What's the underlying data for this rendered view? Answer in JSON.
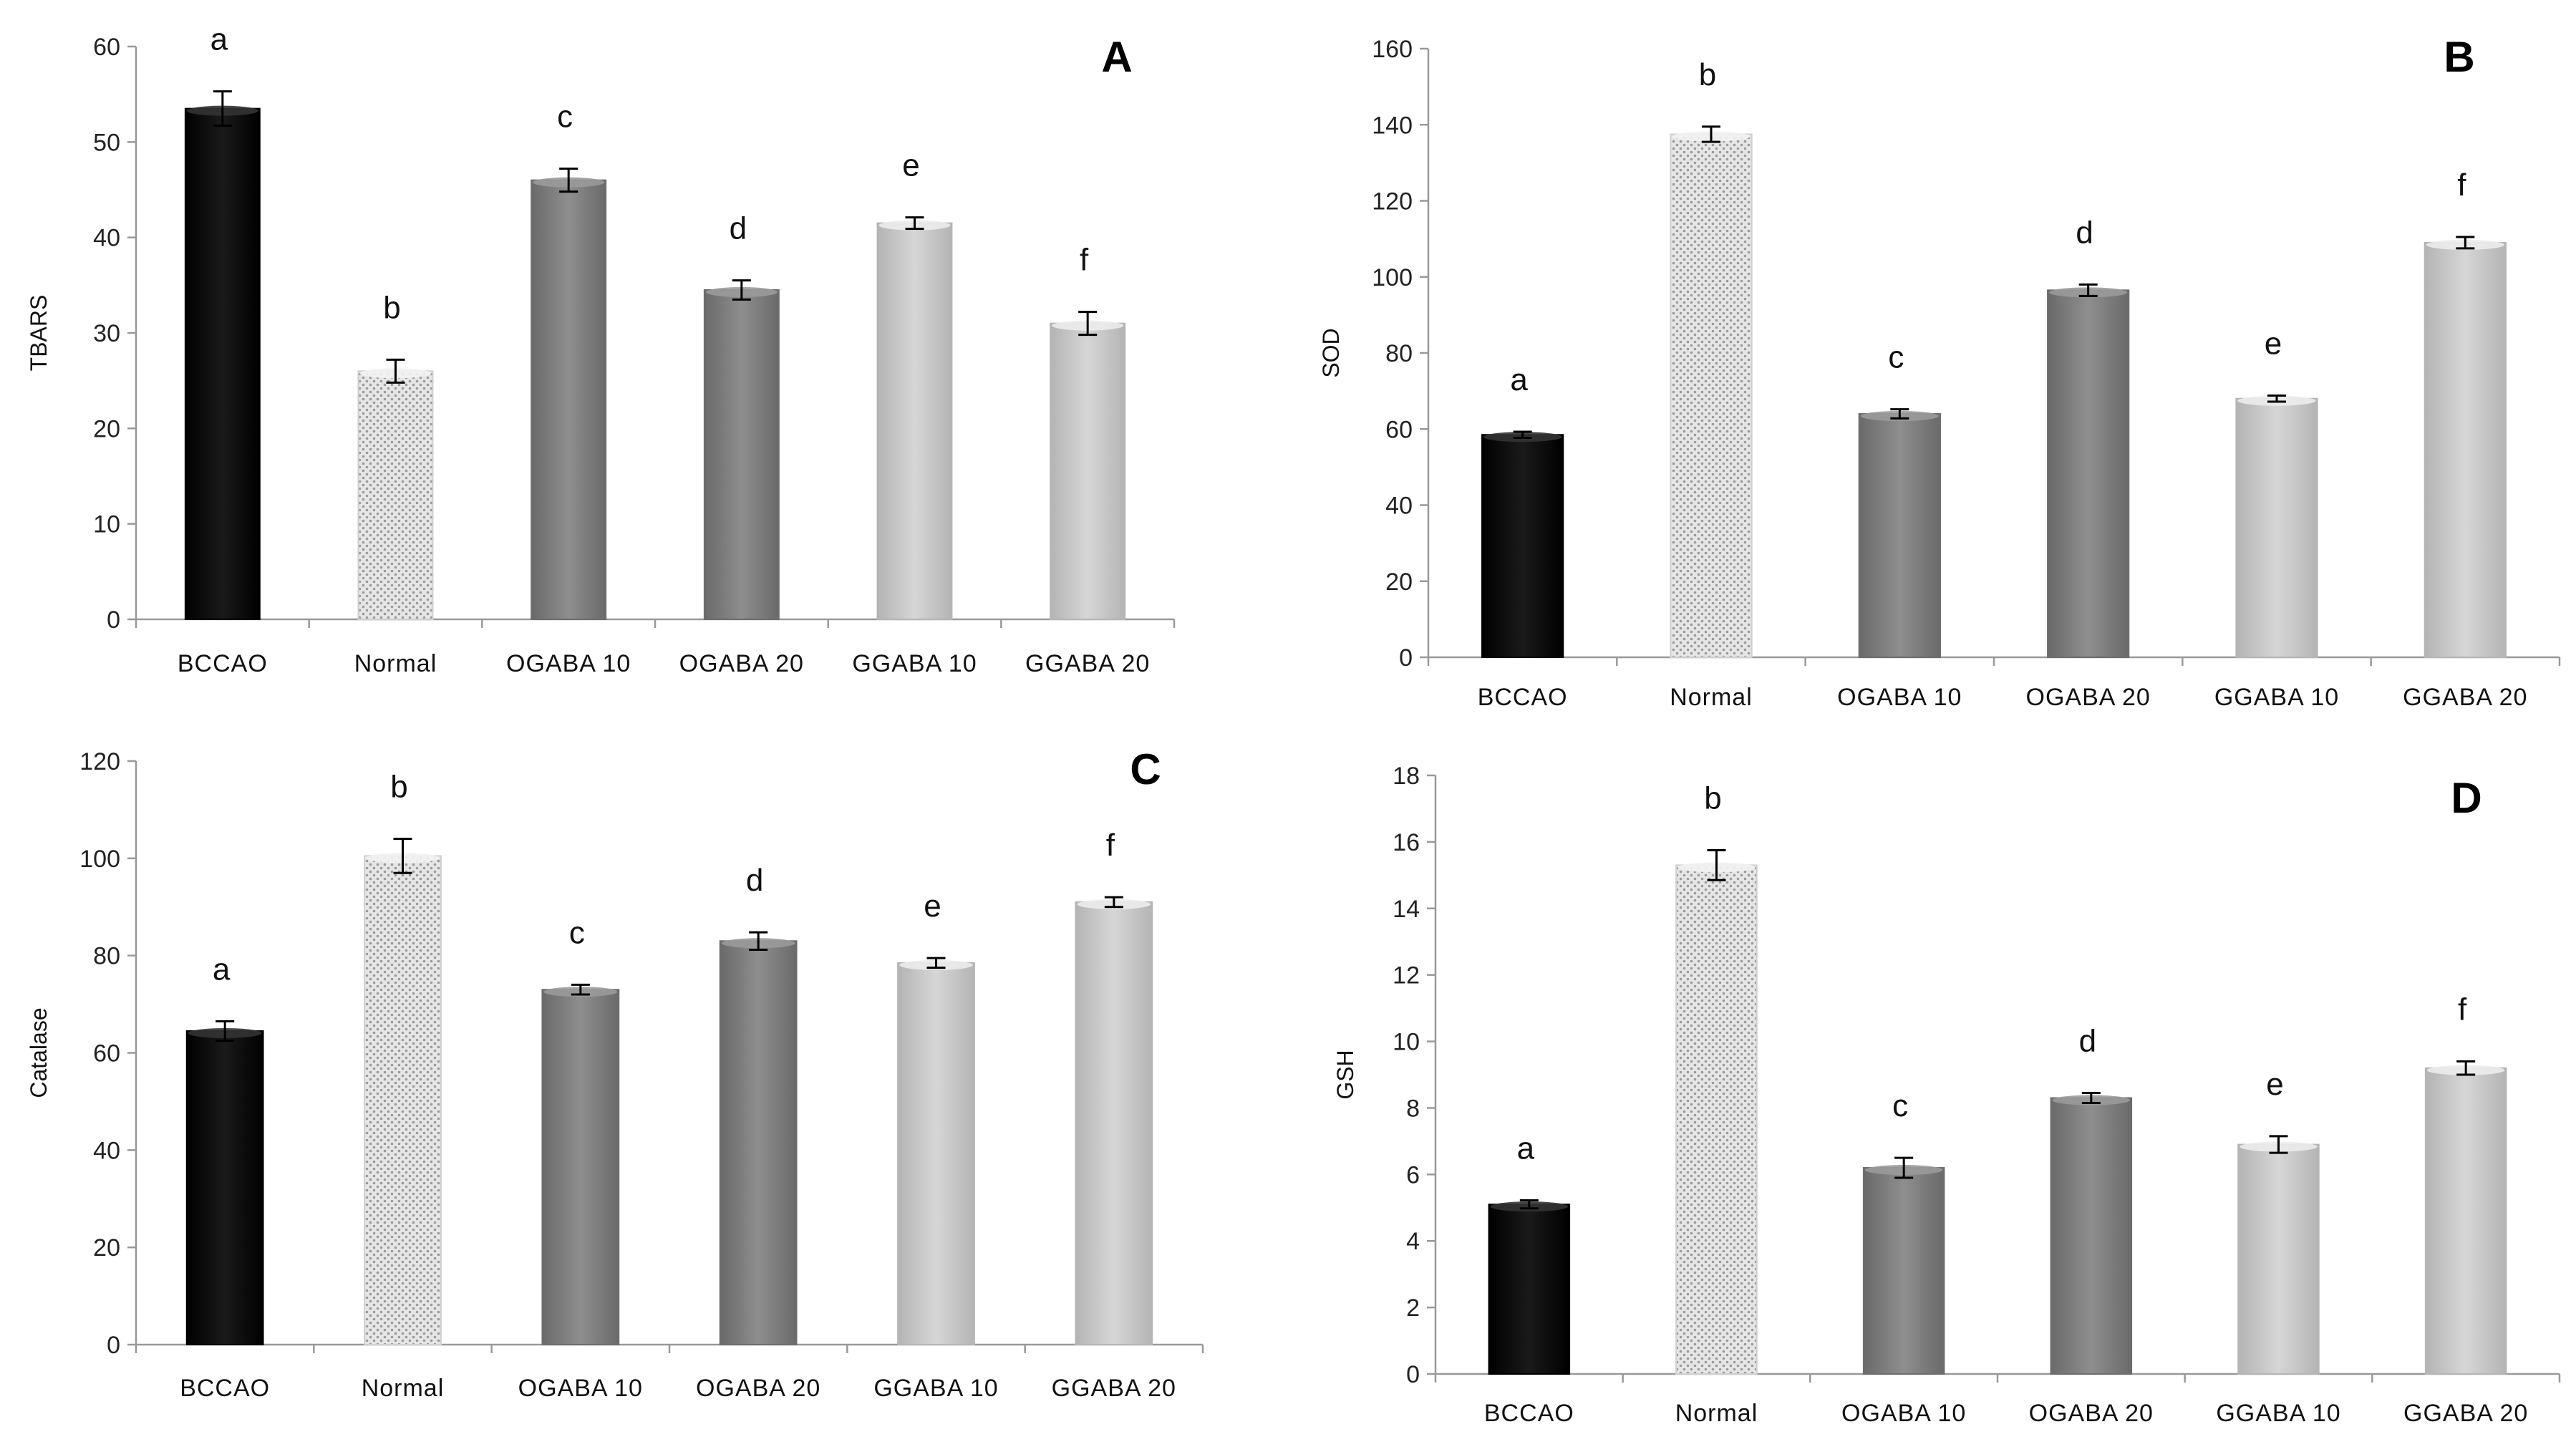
{
  "chart_data": [
    {
      "type": "bar",
      "panel_label": "A",
      "ylabel": "TBARS",
      "xlabel": "",
      "ylim": [
        0,
        60
      ],
      "yticks": [
        0,
        10,
        20,
        30,
        40,
        50,
        60
      ],
      "ytick_labels": [
        "0",
        "10",
        "20",
        "30",
        "40",
        "50",
        "60"
      ],
      "categories": [
        "BCCAO",
        "Normal",
        "OGABA 10",
        "OGABA 20",
        "GGABA 10",
        "GGABA 20"
      ],
      "values": [
        53.5,
        26,
        46,
        34.5,
        41.5,
        31
      ],
      "errors": [
        1.8,
        1.2,
        1.2,
        1.0,
        0.6,
        1.2
      ],
      "significance_letters": [
        "a",
        "b",
        "c",
        "d",
        "e",
        "f"
      ],
      "grid": false
    },
    {
      "type": "bar",
      "panel_label": "B",
      "ylabel": "SOD",
      "xlabel": "",
      "ylim": [
        0,
        160
      ],
      "yticks": [
        0,
        20,
        40,
        60,
        80,
        100,
        120,
        140,
        160
      ],
      "ytick_labels": [
        "0",
        "20",
        "40",
        "60",
        "80",
        "100",
        "120",
        "140",
        "160"
      ],
      "categories": [
        "BCCAO",
        "Normal",
        "OGABA 10",
        "OGABA 20",
        "GGABA 10",
        "GGABA 20"
      ],
      "values": [
        58.5,
        137.5,
        64,
        96.5,
        68,
        109
      ],
      "errors": [
        0.8,
        2.0,
        1.2,
        1.5,
        0.8,
        1.5
      ],
      "significance_letters": [
        "a",
        "b",
        "c",
        "d",
        "e",
        "f"
      ],
      "grid": false
    },
    {
      "type": "bar",
      "panel_label": "C",
      "ylabel": "Catalase",
      "xlabel": "",
      "ylim": [
        0,
        120
      ],
      "yticks": [
        0,
        20,
        40,
        60,
        80,
        100,
        120
      ],
      "ytick_labels": [
        "0",
        "20",
        "40",
        "60",
        "80",
        "100",
        "120"
      ],
      "categories": [
        "BCCAO",
        "Normal",
        "OGABA 10",
        "OGABA 20",
        "GGABA 10",
        "GGABA 20"
      ],
      "values": [
        64.5,
        100.5,
        73,
        83,
        78.5,
        91
      ],
      "errors": [
        2.0,
        3.5,
        1.0,
        1.8,
        1.0,
        1.0
      ],
      "significance_letters": [
        "a",
        "b",
        "c",
        "d",
        "e",
        "f"
      ],
      "grid": false
    },
    {
      "type": "bar",
      "panel_label": "D",
      "ylabel": "GSH",
      "xlabel": "",
      "ylim": [
        0,
        18
      ],
      "yticks": [
        0,
        2,
        4,
        6,
        8,
        10,
        12,
        14,
        16,
        18
      ],
      "ytick_labels": [
        "0",
        "2",
        "4",
        "6",
        "8",
        "10",
        "12",
        "14",
        "16",
        "18"
      ],
      "categories": [
        "BCCAO",
        "Normal",
        "OGABA 10",
        "OGABA 20",
        "GGABA 10",
        "GGABA 20"
      ],
      "values": [
        5.1,
        15.3,
        6.2,
        8.3,
        6.9,
        9.2
      ],
      "errors": [
        0.12,
        0.45,
        0.3,
        0.15,
        0.25,
        0.2
      ],
      "significance_letters": [
        "a",
        "b",
        "c",
        "d",
        "e",
        "f"
      ],
      "grid": false
    }
  ],
  "colors": {
    "bccao": "#000000",
    "normal": "#d9d9d9",
    "ogaba": "#808080",
    "ggaba": "#c8c8c8",
    "axis": "#999999",
    "errorbar": "#000000"
  }
}
